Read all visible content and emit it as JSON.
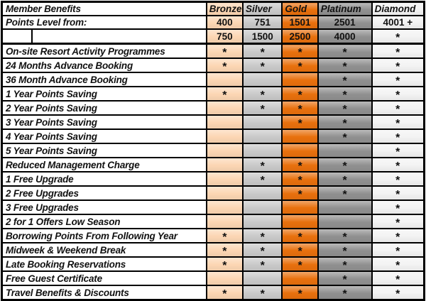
{
  "table": {
    "corner_label": "Member Benefits",
    "tiers": [
      {
        "name": "Bronze",
        "key": "bronze"
      },
      {
        "name": "Silver",
        "key": "silver"
      },
      {
        "name": "Gold",
        "key": "gold"
      },
      {
        "name": "Platinum",
        "key": "platinum"
      },
      {
        "name": "Diamond",
        "key": "diamond"
      }
    ],
    "points_row": {
      "label": "Points Level from:",
      "values": [
        "400",
        "751",
        "1501",
        "2501",
        "4001 +"
      ]
    },
    "points_upper_row": {
      "values": [
        "750",
        "1500",
        "2500",
        "4000",
        "*"
      ]
    },
    "benefits": [
      {
        "label": "On-site Resort Activity Programmes",
        "cells": [
          "*",
          "*",
          "*",
          "*",
          "*"
        ]
      },
      {
        "label": "24 Months Advance Booking",
        "cells": [
          "*",
          "*",
          "*",
          "*",
          "*"
        ]
      },
      {
        "label": "36 Month Advance Booking",
        "cells": [
          "",
          "",
          "",
          "*",
          "*"
        ]
      },
      {
        "label": "1 Year Points Saving",
        "cells": [
          "*",
          "*",
          "*",
          "*",
          "*"
        ]
      },
      {
        "label": "2 Year Points Saving",
        "cells": [
          "",
          "*",
          "*",
          "*",
          "*"
        ]
      },
      {
        "label": "3 Year Points Saving",
        "cells": [
          "",
          "",
          "*",
          "*",
          "*"
        ]
      },
      {
        "label": "4 Year Points Saving",
        "cells": [
          "",
          "",
          "",
          "*",
          "*"
        ]
      },
      {
        "label": "5 Year Points Saving",
        "cells": [
          "",
          "",
          "",
          "",
          "*"
        ]
      },
      {
        "label": "Reduced Management Charge",
        "cells": [
          "",
          "*",
          "*",
          "*",
          "*"
        ]
      },
      {
        "label": "1 Free Upgrade",
        "cells": [
          "",
          "*",
          "*",
          "*",
          "*"
        ]
      },
      {
        "label": "2 Free Upgrades",
        "cells": [
          "",
          "",
          "*",
          "*",
          "*"
        ]
      },
      {
        "label": "3 Free Upgrades",
        "cells": [
          "",
          "",
          "",
          "",
          "*"
        ]
      },
      {
        "label": "2 for 1 Offers Low Season",
        "cells": [
          "",
          "",
          "",
          "",
          "*"
        ]
      },
      {
        "label": "Borrowing Points From Following Year",
        "cells": [
          "*",
          "*",
          "*",
          "*",
          "*"
        ]
      },
      {
        "label": "Midweek & Weekend Break",
        "cells": [
          "*",
          "*",
          "*",
          "*",
          "*"
        ]
      },
      {
        "label": "Late Booking Reservations",
        "cells": [
          "*",
          "*",
          "*",
          "*",
          "*"
        ]
      },
      {
        "label": "Free Guest Certificate",
        "cells": [
          "",
          "",
          "",
          "*",
          "*"
        ]
      },
      {
        "label": "Travel Benefits & Discounts",
        "cells": [
          "*",
          "*",
          "*",
          "*",
          "*"
        ]
      }
    ]
  },
  "colors": {
    "bronze": "#fcd6b3",
    "silver": "#c9c9c9",
    "gold": "#e8700d",
    "platinum": "#909090",
    "diamond": "#f3f3f3",
    "border": "#000000"
  }
}
